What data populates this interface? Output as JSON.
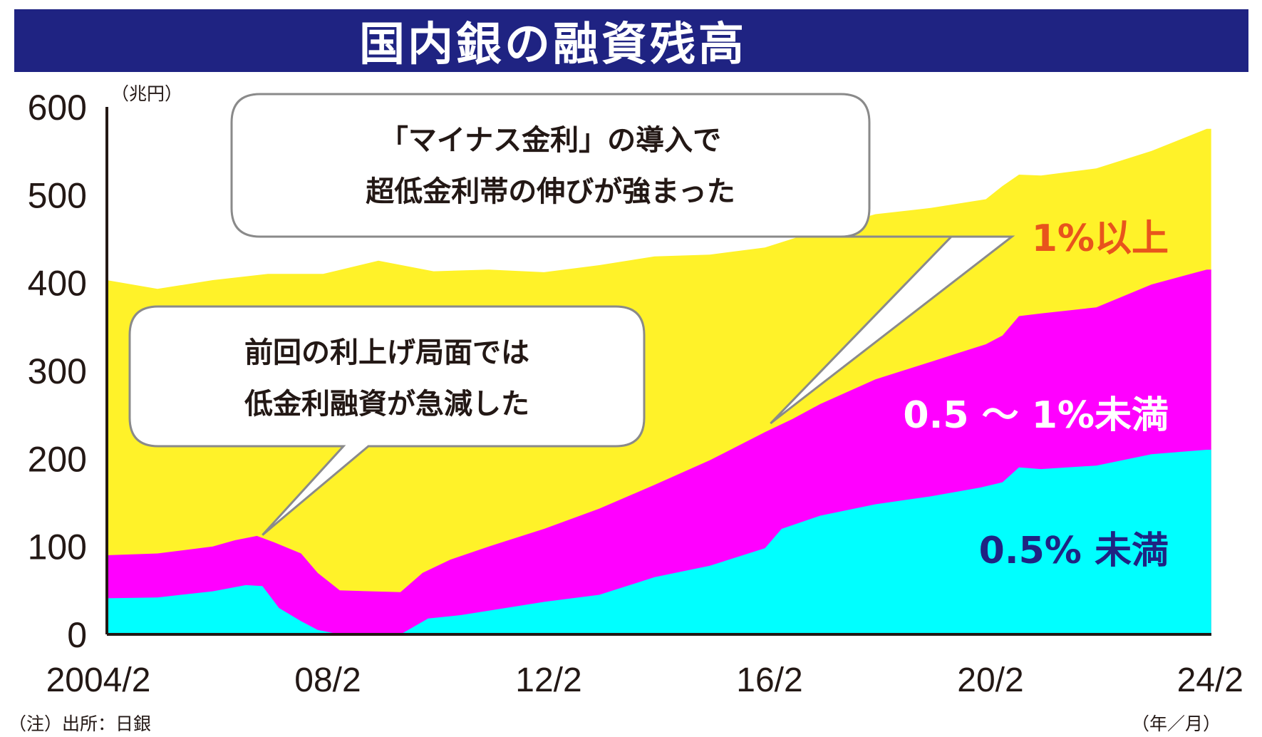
{
  "title": "国内銀の融資残高",
  "footnote": "（注）出所：日銀",
  "chart_data": {
    "type": "area",
    "stacked": true,
    "title": "国内銀の融資残高",
    "ylabel": "（兆円）",
    "xlabel": "（年／月）",
    "ylim": [
      0,
      600
    ],
    "y_ticks": [
      0,
      100,
      200,
      300,
      400,
      500,
      600
    ],
    "x_range": [
      2004.0833,
      2024.0833
    ],
    "x_ticks": [
      {
        "x": 2004.0833,
        "label": "2004/2"
      },
      {
        "x": 2008.0833,
        "label": "08/2"
      },
      {
        "x": 2012.0833,
        "label": "12/2"
      },
      {
        "x": 2016.0833,
        "label": "16/2"
      },
      {
        "x": 2020.0833,
        "label": "20/2"
      },
      {
        "x": 2024.0833,
        "label": "24/2"
      }
    ],
    "grid": false,
    "legend": "inline-right",
    "series": [
      {
        "name": "0.5% 未満",
        "color": "#00ffff",
        "label_color": "#1f2382",
        "points": [
          [
            2004.08,
            41
          ],
          [
            2005.0,
            42
          ],
          [
            2006.0,
            49
          ],
          [
            2006.6,
            56
          ],
          [
            2006.9,
            55
          ],
          [
            2007.2,
            30
          ],
          [
            2007.6,
            15
          ],
          [
            2007.9,
            5
          ],
          [
            2008.3,
            0
          ],
          [
            2009.4,
            0
          ],
          [
            2009.9,
            18
          ],
          [
            2010.5,
            22
          ],
          [
            2011.0,
            27
          ],
          [
            2012.0,
            37
          ],
          [
            2013.0,
            45
          ],
          [
            2014.0,
            65
          ],
          [
            2015.0,
            78
          ],
          [
            2016.0,
            98
          ],
          [
            2016.3,
            120
          ],
          [
            2017.0,
            135
          ],
          [
            2018.0,
            148
          ],
          [
            2019.0,
            157
          ],
          [
            2019.9,
            167
          ],
          [
            2020.3,
            173
          ],
          [
            2020.6,
            190
          ],
          [
            2021.0,
            188
          ],
          [
            2022.0,
            192
          ],
          [
            2023.0,
            205
          ],
          [
            2024.0,
            210
          ],
          [
            2024.08,
            210
          ]
        ]
      },
      {
        "name": "0.5 ～ 1%未満",
        "color": "#ff00ff",
        "label_color": "#ffffff",
        "points": [
          [
            2004.08,
            90
          ],
          [
            2005.0,
            92
          ],
          [
            2006.0,
            100
          ],
          [
            2006.4,
            107
          ],
          [
            2006.8,
            112
          ],
          [
            2007.1,
            105
          ],
          [
            2007.6,
            92
          ],
          [
            2007.9,
            70
          ],
          [
            2008.3,
            50
          ],
          [
            2009.4,
            48
          ],
          [
            2009.8,
            70
          ],
          [
            2010.3,
            85
          ],
          [
            2011.0,
            100
          ],
          [
            2012.0,
            120
          ],
          [
            2013.0,
            143
          ],
          [
            2014.0,
            170
          ],
          [
            2015.0,
            198
          ],
          [
            2016.0,
            230
          ],
          [
            2016.5,
            245
          ],
          [
            2017.0,
            262
          ],
          [
            2018.0,
            290
          ],
          [
            2019.0,
            310
          ],
          [
            2019.5,
            320
          ],
          [
            2020.0,
            330
          ],
          [
            2020.3,
            340
          ],
          [
            2020.6,
            362
          ],
          [
            2021.0,
            365
          ],
          [
            2022.0,
            372
          ],
          [
            2023.0,
            398
          ],
          [
            2024.0,
            415
          ],
          [
            2024.08,
            415
          ]
        ]
      },
      {
        "name": "1%以上",
        "color": "#fff229",
        "label_color": "#e8541c",
        "points": [
          [
            2004.08,
            403
          ],
          [
            2005.0,
            393
          ],
          [
            2006.0,
            403
          ],
          [
            2007.0,
            410
          ],
          [
            2008.0,
            410
          ],
          [
            2009.0,
            425
          ],
          [
            2010.0,
            413
          ],
          [
            2011.0,
            415
          ],
          [
            2012.0,
            412
          ],
          [
            2013.0,
            420
          ],
          [
            2014.0,
            430
          ],
          [
            2015.0,
            432
          ],
          [
            2016.0,
            440
          ],
          [
            2017.0,
            460
          ],
          [
            2018.0,
            478
          ],
          [
            2019.0,
            485
          ],
          [
            2020.0,
            495
          ],
          [
            2020.3,
            510
          ],
          [
            2020.6,
            523
          ],
          [
            2021.0,
            522
          ],
          [
            2022.0,
            530
          ],
          [
            2023.0,
            550
          ],
          [
            2024.0,
            575
          ],
          [
            2024.08,
            575
          ]
        ]
      }
    ],
    "annotations": [
      {
        "lines": [
          "前回の利上げ局面では",
          "低金利融資が急減した"
        ],
        "points_to": [
          2006.9,
          113
        ]
      },
      {
        "lines": [
          "「マイナス金利」の導入で",
          "超低金利帯の伸びが強まった"
        ],
        "points_to": [
          2016.1,
          240
        ]
      }
    ]
  }
}
